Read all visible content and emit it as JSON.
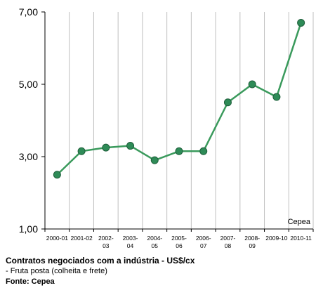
{
  "chart_data": {
    "type": "line",
    "categories": [
      [
        "2000-01"
      ],
      [
        "2001-02"
      ],
      [
        "2002-",
        "03"
      ],
      [
        "2003-",
        "04"
      ],
      [
        "2004-",
        "05"
      ],
      [
        "2005-",
        "06"
      ],
      [
        "2006-",
        "07"
      ],
      [
        "2007-",
        "08"
      ],
      [
        "2008-",
        "09"
      ],
      [
        "2009-10"
      ],
      [
        "2010-11"
      ]
    ],
    "series": [
      {
        "values": [
          2.5,
          3.15,
          3.25,
          3.3,
          2.9,
          3.15,
          3.15,
          4.5,
          5.0,
          4.65,
          6.7
        ]
      }
    ],
    "ylim": [
      1,
      7
    ],
    "yticks": [
      1,
      3,
      5,
      7
    ],
    "ytick_labels": [
      "1,00",
      "3,00",
      "5,00",
      "7,00"
    ],
    "grid": "vertical",
    "annotation": "Cepea",
    "title": "Contratos negociados com a indústria - US$/cx",
    "subtitle": "- Fruta posta (colheita e frete)",
    "source": "Fonte: Cepea",
    "colors": {
      "line": "#3a9a5c",
      "marker_fill": "#2e8b57",
      "marker_stroke": "#1e5e3a",
      "axis": "#000000",
      "grid": "#bfbfbf"
    }
  }
}
